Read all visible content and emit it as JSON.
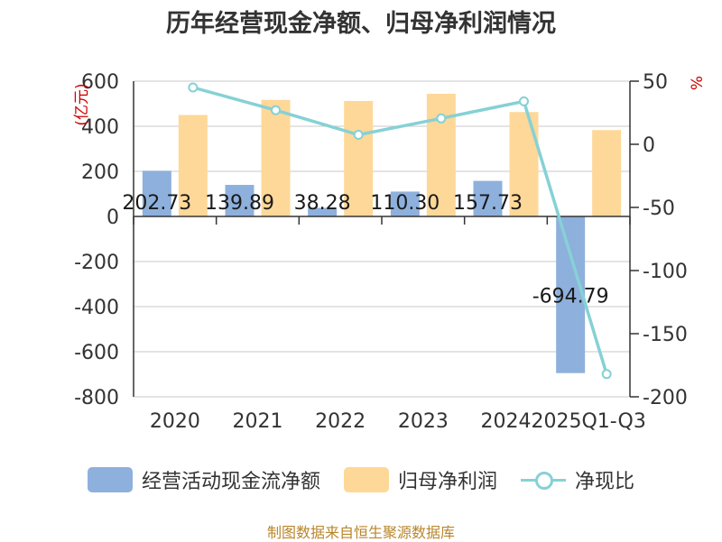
{
  "chart_data": {
    "type": "bar",
    "title": "历年经营现金净额、归母净利润情况",
    "categories": [
      "2020",
      "2021",
      "2022",
      "2023",
      "2024",
      "2025Q1-Q3"
    ],
    "series": [
      {
        "name": "经营活动现金流净额",
        "type": "bar",
        "axis": "left",
        "color": "#8eb0dc",
        "values": [
          202.73,
          139.89,
          38.28,
          110.3,
          157.73,
          -694.79
        ],
        "labels": [
          "202.73",
          "139.89",
          "38.28",
          "110.30",
          "157.73",
          "-694.79"
        ]
      },
      {
        "name": "归母净利润",
        "type": "bar",
        "axis": "left",
        "color": "#fed898",
        "values": [
          450,
          517,
          512,
          544,
          463,
          383
        ]
      },
      {
        "name": "净现比",
        "type": "line",
        "axis": "right",
        "color": "#86d1d5",
        "values": [
          45,
          27,
          7.5,
          20.5,
          34,
          -182
        ]
      }
    ],
    "y_left": {
      "label": "(亿元)",
      "ylim": [
        -800,
        600
      ],
      "ticks": [
        600,
        400,
        200,
        0,
        -200,
        -400,
        -600,
        -800
      ],
      "tick_labels": [
        "600",
        "400",
        "200",
        "0",
        "-200",
        "-400",
        "-600",
        "-800"
      ]
    },
    "y_right": {
      "label": "%",
      "ylim": [
        -200,
        50
      ],
      "ticks": [
        50,
        0,
        -50,
        -100,
        -150,
        -200
      ],
      "tick_labels": [
        "50",
        "0",
        "-50",
        "-100",
        "-150",
        "-200"
      ]
    },
    "grid": true,
    "legend_position": "bottom"
  },
  "source": "制图数据来自恒生聚源数据库"
}
